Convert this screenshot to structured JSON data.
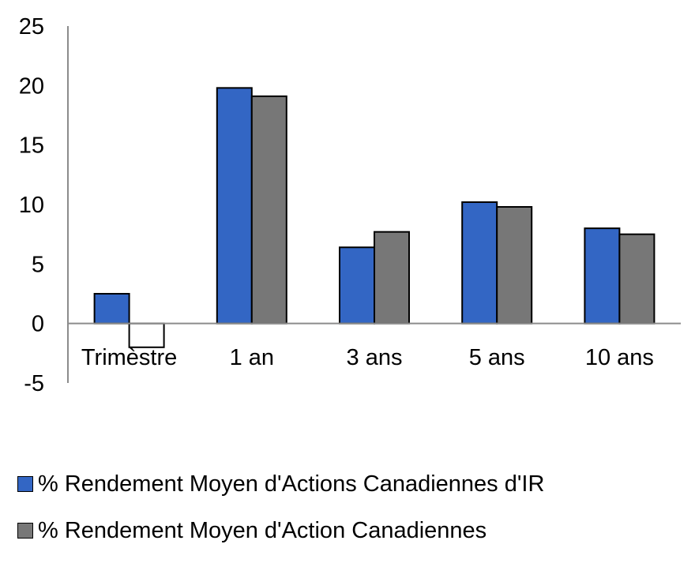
{
  "chart_data": {
    "type": "bar",
    "title": "",
    "xlabel": "",
    "ylabel": "",
    "categories": [
      "Trimèstre",
      "1 an",
      "3 ans",
      "5 ans",
      "10 ans"
    ],
    "series": [
      {
        "name": "% Rendement Moyen d'Actions Canadiennes d'IR",
        "color": "#3366c4",
        "values": [
          2.5,
          19.8,
          6.4,
          10.2,
          8.0
        ]
      },
      {
        "name": "% Rendement Moyen d'Action Canadiennes",
        "color": "#777777",
        "values": [
          -2.0,
          19.1,
          7.7,
          9.8,
          7.5
        ]
      }
    ],
    "ylim": [
      -5,
      25
    ],
    "yticks": [
      "25",
      "20",
      "15",
      "10",
      "5",
      "0",
      "-5"
    ],
    "grid": false,
    "legend_position": "bottom"
  }
}
